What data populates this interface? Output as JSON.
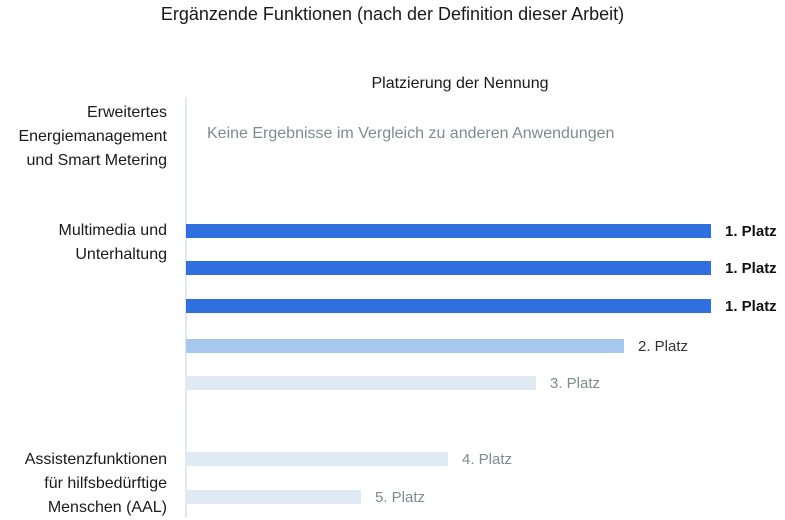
{
  "chart_data": {
    "type": "bar",
    "orientation": "horizontal",
    "title": "Ergänzende Funktionen (nach der Definition dieser Arbeit)",
    "xlabel": "Platzierung der Nennung",
    "grid": false,
    "categories": [
      {
        "label": "Erweitertes\nEnergiemanagement\nund Smart Metering",
        "note": "Keine Ergebnisse im Vergleich zu anderen Anwendungen"
      },
      {
        "label": "Multimedia und\nUnterhaltung"
      },
      {
        "label": "Assistenzfunktionen\nfür hilfsbedürftige\nMenschen (AAL)"
      }
    ],
    "bars": [
      {
        "rank": 1,
        "label": "1. Platz",
        "color": "#2f6fe0",
        "label_color": "#111111",
        "bold": true
      },
      {
        "rank": 1,
        "label": "1. Platz",
        "color": "#2f6fe0",
        "label_color": "#111111",
        "bold": true
      },
      {
        "rank": 1,
        "label": "1. Platz",
        "color": "#2f6fe0",
        "label_color": "#111111",
        "bold": true
      },
      {
        "rank": 2,
        "label": "2. Platz",
        "color": "#a7c8ee",
        "label_color": "#333333",
        "bold": false
      },
      {
        "rank": 3,
        "label": "3. Platz",
        "color": "#dfeaf4",
        "label_color": "#7f8c8d",
        "bold": false
      },
      {
        "rank": 4,
        "label": "4. Platz",
        "color": "#dfeaf4",
        "label_color": "#7f8c8d",
        "bold": false
      },
      {
        "rank": 5,
        "label": "5. Platz",
        "color": "#dfeaf4",
        "label_color": "#7f8c8d",
        "bold": false
      }
    ]
  }
}
